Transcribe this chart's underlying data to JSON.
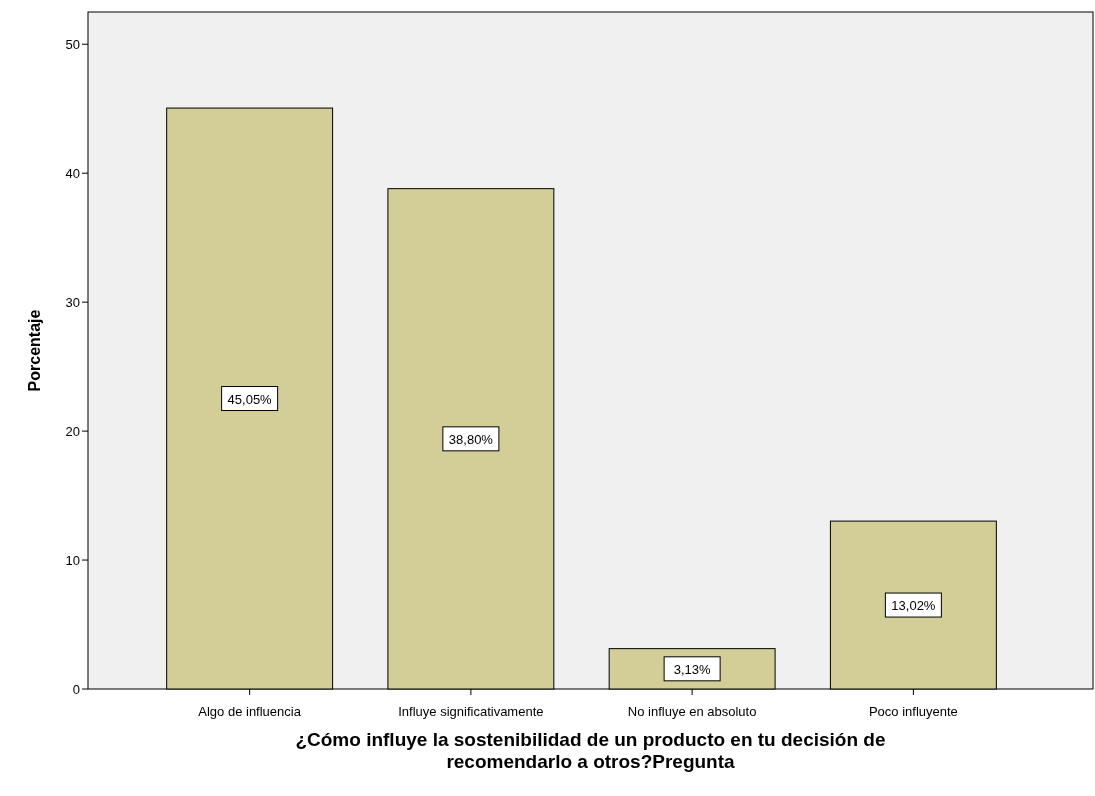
{
  "chart_data": {
    "type": "bar",
    "xlabel": "¿Cómo influye la sostenibilidad de un producto en tu decisión de recomendarlo a otros?Pregunta",
    "ylabel": "Porcentaje",
    "categories": [
      "Algo de influencia",
      "Influye significativamente",
      "No influye en absoluto",
      "Poco influyente"
    ],
    "values": [
      45.05,
      38.8,
      3.13,
      13.02
    ],
    "value_labels": [
      "45,05%",
      "38,80%",
      "3,13%",
      "13,02%"
    ],
    "color": "#d3ce97",
    "ylim": [
      0,
      52.5
    ],
    "yticks": [
      0,
      10,
      20,
      30,
      40,
      50
    ],
    "grid": false
  }
}
